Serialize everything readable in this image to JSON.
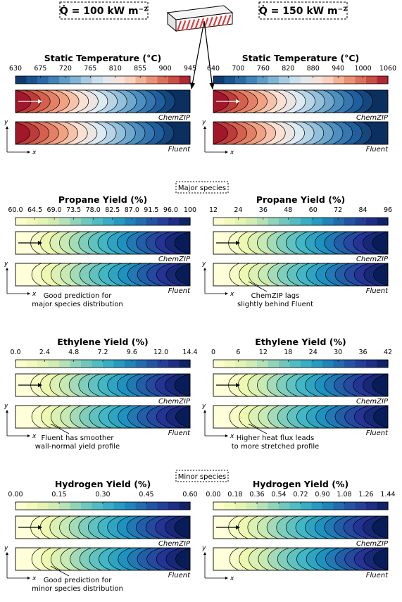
{
  "header": {
    "heat_left": "Q̇ = 100 kW m⁻²",
    "heat_right": "Q̇ = 150 kW m⁻²",
    "heat_color": "#e03c3c"
  },
  "sections": {
    "major": "Major species",
    "minor": "Minor species"
  },
  "model_labels": {
    "top": "ChemZIP",
    "bottom": "Fluent"
  },
  "axes": {
    "x": "x",
    "y": "y"
  },
  "panels": [
    {
      "title": "Static Temperature (°C)",
      "cmap": "temp",
      "ticks": [
        "630",
        "675",
        "720",
        "765",
        "810",
        "855",
        "900",
        "945"
      ],
      "flow": "rtl"
    },
    {
      "title": "Static Temperature (°C)",
      "cmap": "temp",
      "ticks": [
        "640",
        "700",
        "760",
        "820",
        "880",
        "940",
        "1000",
        "1060"
      ],
      "flow": "rtl"
    },
    {
      "title": "Propane Yield (%)",
      "cmap": "ylgnbu",
      "ticks": [
        "60.0",
        "64.5",
        "69.0",
        "73.5",
        "78.0",
        "82.5",
        "87.0",
        "91.5",
        "96.0",
        "100"
      ],
      "flow": "ltr"
    },
    {
      "title": "Propane Yield (%)",
      "cmap": "ylgnbu",
      "ticks": [
        "12",
        "24",
        "36",
        "48",
        "60",
        "72",
        "84",
        "96"
      ],
      "flow": "ltr"
    },
    {
      "title": "Ethylene Yield (%)",
      "cmap": "ylgnbu",
      "ticks": [
        "0.0",
        "2.4",
        "4.8",
        "7.2",
        "9.6",
        "12.0",
        "14.4"
      ],
      "flow": "ltr"
    },
    {
      "title": "Ethylene Yield (%)",
      "cmap": "ylgnbu",
      "ticks": [
        "0",
        "6",
        "12",
        "18",
        "24",
        "30",
        "36",
        "42"
      ],
      "flow": "ltr"
    },
    {
      "title": "Hydrogen Yield (%)",
      "cmap": "ylgnbu",
      "ticks": [
        "0.00",
        "0.15",
        "0.30",
        "0.45",
        "0.60"
      ],
      "flow": "ltr"
    },
    {
      "title": "Hydrogen Yield (%)",
      "cmap": "ylgnbu",
      "ticks": [
        "0.00",
        "0.18",
        "0.36",
        "0.54",
        "0.72",
        "0.90",
        "1.08",
        "1.26",
        "1.44"
      ],
      "flow": "ltr"
    }
  ],
  "annotations": [
    {
      "panel": 2,
      "lines": [
        "Good prediction for",
        "major species distribution"
      ]
    },
    {
      "panel": 3,
      "lines": [
        "ChemZIP lags",
        "slightly behind Fluent"
      ]
    },
    {
      "panel": 4,
      "lines": [
        "Fluent has smoother",
        "wall-normal yield profile"
      ]
    },
    {
      "panel": 5,
      "lines": [
        "Higher heat flux leads",
        "to more stretched profile"
      ]
    },
    {
      "panel": 6,
      "lines": [
        "Good prediction for",
        "minor species distribution"
      ]
    }
  ],
  "colors": {
    "temp": [
      "#0b2f5e",
      "#1f5f9e",
      "#4c8fc0",
      "#93c0db",
      "#dceaf2",
      "#fbe1d3",
      "#f1a283",
      "#d5604d",
      "#a3172b"
    ],
    "ylgnbu": [
      "#ffffd9",
      "#edf8b1",
      "#c7e9b4",
      "#7fcdbb",
      "#41b6c4",
      "#1d91c0",
      "#225ea8",
      "#253494",
      "#081d58"
    ]
  }
}
